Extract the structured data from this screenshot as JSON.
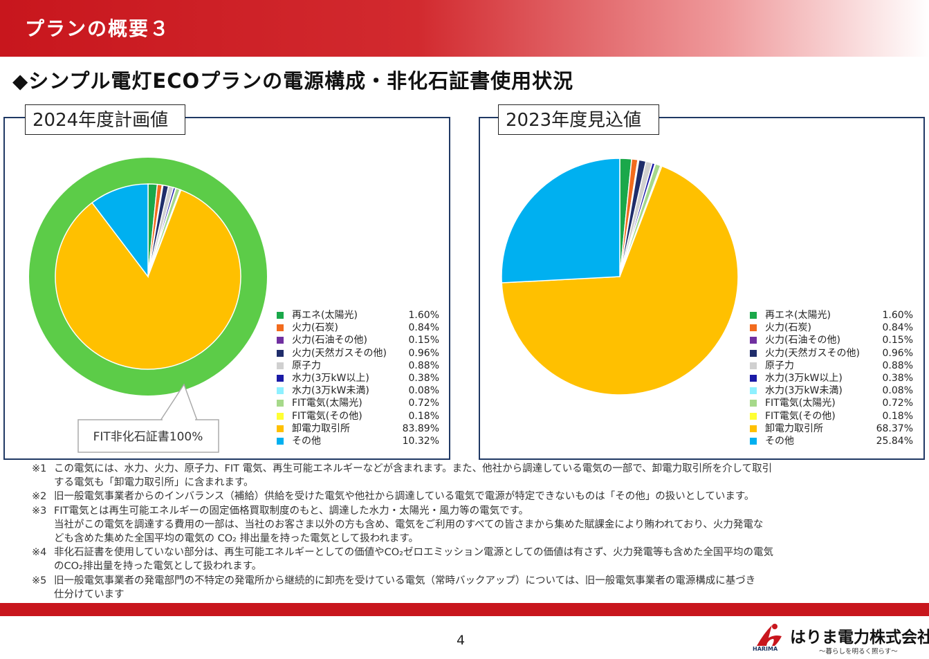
{
  "header": {
    "title": "プランの概要３"
  },
  "section_title": "◆シンプル電灯ECOプランの電源構成・非化石証書使用状況",
  "panels": {
    "left": {
      "label": "2024年度計画値",
      "callout": "FIT非化石証書100%"
    },
    "right": {
      "label": "2023年度見込値"
    }
  },
  "colors": {
    "brand_red": "#c8161d",
    "panel_border": "#1f3864",
    "fit_ring": "#5ccc48"
  },
  "chart_data": [
    {
      "type": "pie",
      "title": "2024年度計画値",
      "annotation": "FIT非化石証書100%",
      "categories": [
        "再エネ(太陽光)",
        "火力(石炭)",
        "火力(石油その他)",
        "火力(天然ガスその他)",
        "原子力",
        "水力(3万kW以上)",
        "水力(3万kW未満)",
        "FIT電気(太陽光)",
        "FIT電気(その他)",
        "卸電力取引所",
        "その他"
      ],
      "values": [
        1.6,
        0.84,
        0.15,
        0.96,
        0.88,
        0.38,
        0.08,
        0.72,
        0.18,
        83.89,
        10.32
      ],
      "labels": [
        "1.60%",
        "0.84%",
        "0.15%",
        "0.96%",
        "0.88%",
        "0.38%",
        "0.08%",
        "0.72%",
        "0.18%",
        "83.89%",
        "10.32%"
      ],
      "colors": [
        "#1aa84a",
        "#f26b1d",
        "#7030a0",
        "#1f2d6b",
        "#d0d0d0",
        "#1a1aa6",
        "#8ef0ff",
        "#a6d98a",
        "#ffff33",
        "#ffc000",
        "#00b0f0"
      ],
      "legend": "right"
    },
    {
      "type": "pie",
      "title": "2023年度見込値",
      "categories": [
        "再エネ(太陽光)",
        "火力(石炭)",
        "火力(石油その他)",
        "火力(天然ガスその他)",
        "原子力",
        "水力(3万kW以上)",
        "水力(3万kW未満)",
        "FIT電気(太陽光)",
        "FIT電気(その他)",
        "卸電力取引所",
        "その他"
      ],
      "values": [
        1.6,
        0.84,
        0.15,
        0.96,
        0.88,
        0.38,
        0.08,
        0.72,
        0.18,
        68.37,
        25.84
      ],
      "labels": [
        "1.60%",
        "0.84%",
        "0.15%",
        "0.96%",
        "0.88%",
        "0.38%",
        "0.08%",
        "0.72%",
        "0.18%",
        "68.37%",
        "25.84%"
      ],
      "colors": [
        "#1aa84a",
        "#f26b1d",
        "#7030a0",
        "#1f2d6b",
        "#d0d0d0",
        "#1a1aa6",
        "#8ef0ff",
        "#a6d98a",
        "#ffff33",
        "#ffc000",
        "#00b0f0"
      ],
      "legend": "right"
    }
  ],
  "notes": [
    {
      "mark": "※1",
      "lines": [
        "この電気には、水力、火力、原子力、FIT 電気、再生可能エネルギーなどが含まれます。また、他社から調達している電気の一部で、卸電力取引所を介して取引",
        "する電気も「卸電力取引所」に含まれます。"
      ]
    },
    {
      "mark": "※2",
      "lines": [
        "旧一般電気事業者からのインバランス（補給）供給を受けた電気や他社から調達している電気で電源が特定できないものは「その他」の扱いとしています。"
      ]
    },
    {
      "mark": "※3",
      "lines": [
        "FIT電気とは再生可能エネルギーの固定価格買取制度のもと、調達した水力・太陽光・風力等の電気です。",
        "当社がこの電気を調達する費用の一部は、当社のお客さま以外の方も含め、電気をご利用のすべての皆さまから集めた賦課金により賄われており、火力発電な",
        "ども含めた集めた全国平均の電気の CO₂ 排出量を持った電気として扱われます。"
      ]
    },
    {
      "mark": "※4",
      "lines": [
        "非化石証書を使用していない部分は、再生可能エネルギーとしての価値やCO₂ゼロエミッション電源としての価値は有さず、火力発電等も含めた全国平均の電気",
        "のCO₂排出量を持った電気として扱われます。"
      ]
    },
    {
      "mark": "※5",
      "lines": [
        "旧一般電気事業者の発電部門の不特定の発電所から継続的に卸売を受けている電気（常時バックアップ）については、旧一般電気事業者の電源構成に基づき",
        "仕分けています"
      ]
    }
  ],
  "footer": {
    "page_number": "4",
    "company": "はりま電力株式会社",
    "logo_sub": "HARIMA",
    "tagline": "〜暮らしを明るく照らす〜"
  }
}
